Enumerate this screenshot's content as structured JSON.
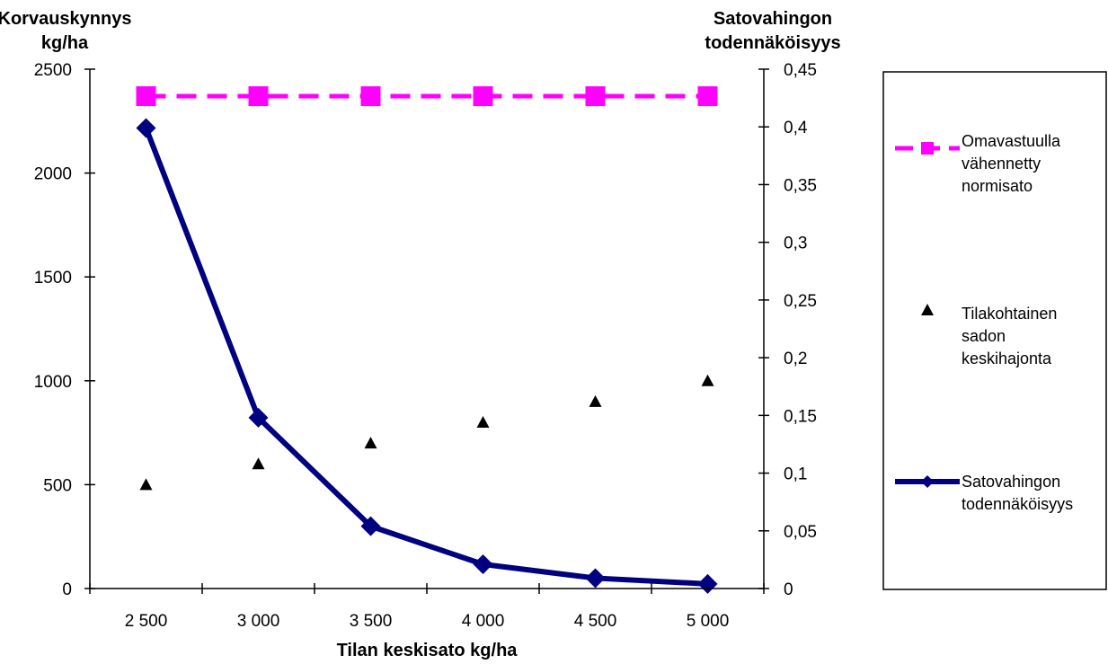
{
  "chart_data": {
    "type": "line",
    "categories": [
      "2 500",
      "3 000",
      "3 500",
      "4 000",
      "4 500",
      "5 000"
    ],
    "xlabel": "Tilan keskisato  kg/ha",
    "ylabel_left": [
      "Korvauskynnys",
      "kg/ha"
    ],
    "ylabel_right": [
      "Satovahingon",
      "todennäköisyys"
    ],
    "ylim_left": [
      0,
      2500
    ],
    "ylim_right": [
      0,
      0.45
    ],
    "yticks_left": [
      "0",
      "500",
      "1000",
      "1500",
      "2000",
      "2500"
    ],
    "yticks_right": [
      "0",
      "0,05",
      "0,1",
      "0,15",
      "0,2",
      "0,25",
      "0,3",
      "0,35",
      "0,4",
      "0,45"
    ],
    "grid": false,
    "legend_position": "right",
    "series": [
      {
        "name": [
          "Omavastuulla",
          "vähennetty",
          "normisato"
        ],
        "axis": "left",
        "style": "dashed-line-square",
        "color": "#FF00FF",
        "values": [
          2370,
          2370,
          2370,
          2370,
          2370,
          2370
        ]
      },
      {
        "name": [
          "Tilakohtainen",
          "sadon",
          "keskihajonta"
        ],
        "axis": "left",
        "style": "triangle-markers",
        "color": "#000000",
        "values": [
          500,
          600,
          700,
          800,
          900,
          1000
        ]
      },
      {
        "name": [
          "Satovahingon",
          "todennäköisyys"
        ],
        "axis": "right",
        "style": "solid-line-diamond",
        "color": "#000080",
        "values": [
          0.399,
          0.148,
          0.054,
          0.021,
          0.009,
          0.004
        ]
      }
    ]
  }
}
